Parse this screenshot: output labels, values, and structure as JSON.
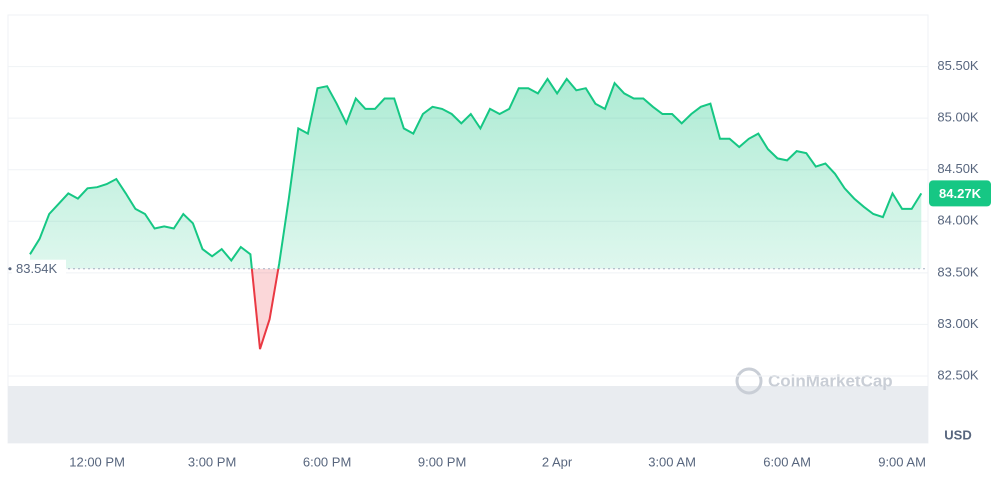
{
  "chart_data": {
    "type": "line",
    "categories": [
      null,
      null,
      null,
      null,
      null,
      null,
      null,
      "12:00 PM",
      null,
      null,
      null,
      null,
      null,
      null,
      null,
      null,
      null,
      null,
      null,
      "3:00 PM",
      null,
      null,
      null,
      null,
      null,
      null,
      null,
      null,
      null,
      null,
      null,
      "6:00 PM",
      null,
      null,
      null,
      null,
      null,
      null,
      null,
      null,
      null,
      null,
      null,
      "9:00 PM",
      null,
      null,
      null,
      null,
      null,
      null,
      null,
      null,
      null,
      null,
      null,
      "2 Apr",
      null,
      null,
      null,
      null,
      null,
      null,
      null,
      null,
      null,
      null,
      null,
      "3:00 AM",
      null,
      null,
      null,
      null,
      null,
      null,
      null,
      null,
      null,
      null,
      null,
      "6:00 AM",
      null,
      null,
      null,
      null,
      null,
      null,
      null,
      null,
      null,
      null,
      null,
      "9:00 AM",
      null,
      null
    ],
    "values": [
      83680,
      83830,
      84070,
      84170,
      84270,
      84220,
      84320,
      84330,
      84360,
      84410,
      84270,
      84120,
      84070,
      83930,
      83950,
      83930,
      84070,
      83980,
      83730,
      83660,
      83730,
      83620,
      83750,
      83680,
      82760,
      83050,
      83590,
      84220,
      84900,
      84850,
      85290,
      85310,
      85140,
      84950,
      85190,
      85090,
      85090,
      85190,
      85190,
      84900,
      84850,
      85040,
      85110,
      85090,
      85040,
      84950,
      85040,
      84900,
      85090,
      85040,
      85090,
      85290,
      85290,
      85240,
      85380,
      85240,
      85380,
      85270,
      85290,
      85140,
      85090,
      85340,
      85240,
      85190,
      85190,
      85110,
      85040,
      85040,
      84950,
      85040,
      85110,
      85140,
      84800,
      84800,
      84720,
      84800,
      84850,
      84700,
      84610,
      84590,
      84680,
      84660,
      84530,
      84560,
      84460,
      84320,
      84220,
      84140,
      84070,
      84040,
      84270,
      84120,
      84120,
      84270
    ],
    "color": "#16c784",
    "down_color": "#ea3943",
    "baseline": {
      "value": 83540,
      "label": "83.54K"
    },
    "last_price": {
      "value": 84270,
      "label": "84.27K"
    },
    "ylim": [
      81850,
      86000
    ],
    "yticks": [
      {
        "value": 82500,
        "label": "82.50K"
      },
      {
        "value": 83000,
        "label": "83.00K"
      },
      {
        "value": 83500,
        "label": "83.50K"
      },
      {
        "value": 84000,
        "label": "84.00K"
      },
      {
        "value": 84500,
        "label": "84.50K"
      },
      {
        "value": 85000,
        "label": "85.00K"
      },
      {
        "value": 85500,
        "label": "85.50K"
      }
    ],
    "grid": true,
    "unit": "USD",
    "watermark": "CoinMarketCap"
  }
}
